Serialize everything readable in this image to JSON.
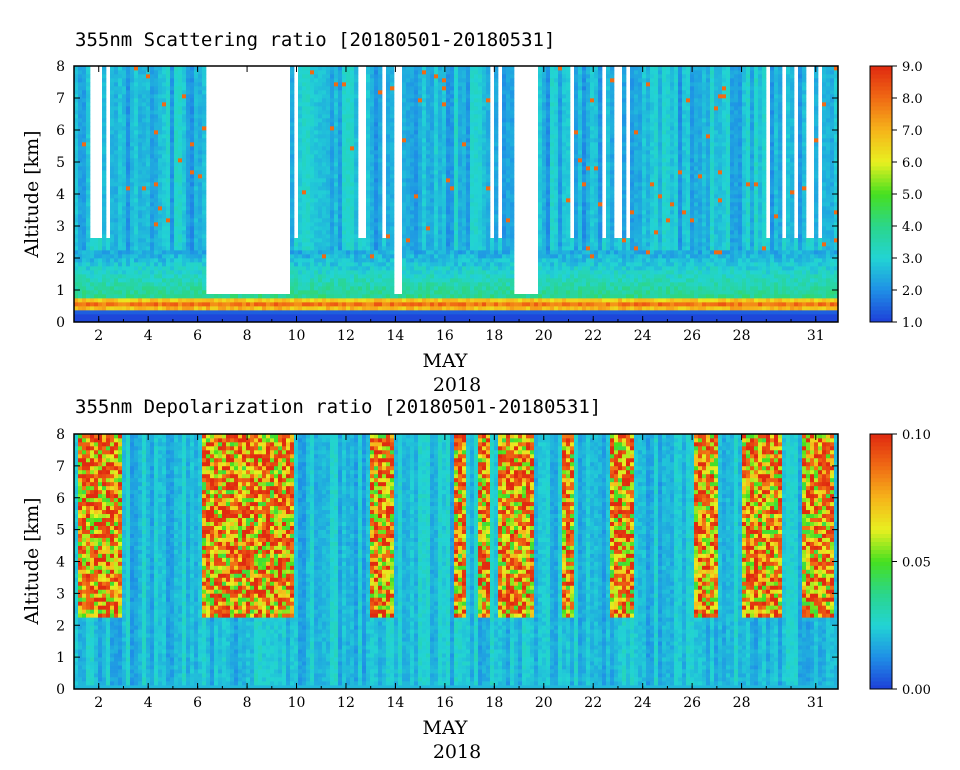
{
  "chart_data": [
    {
      "type": "heatmap",
      "title": "355nm Scattering ratio [20180501-20180531]",
      "ylabel": "Altitude [km]",
      "xlabel": "MAY",
      "xlabel_year": "2018",
      "x_range_day": [
        1,
        31.9
      ],
      "ylim": [
        0,
        8
      ],
      "x_ticks": [
        {
          "day": 2,
          "label": "2"
        },
        {
          "day": 4,
          "label": "4"
        },
        {
          "day": 6,
          "label": "6"
        },
        {
          "day": 8,
          "label": "8"
        },
        {
          "day": 10,
          "label": "10"
        },
        {
          "day": 12,
          "label": "12"
        },
        {
          "day": 14,
          "label": "14"
        },
        {
          "day": 16,
          "label": "16"
        },
        {
          "day": 18,
          "label": "18"
        },
        {
          "day": 20,
          "label": "20"
        },
        {
          "day": 22,
          "label": "22"
        },
        {
          "day": 24,
          "label": "24"
        },
        {
          "day": 26,
          "label": "26"
        },
        {
          "day": 28,
          "label": "28"
        },
        {
          "day": 31,
          "label": "31"
        }
      ],
      "y_ticks": [
        "0",
        "1",
        "2",
        "3",
        "4",
        "5",
        "6",
        "7",
        "8"
      ],
      "colorbar": {
        "min": 1.0,
        "max": 9.0,
        "tick_labels": [
          "1.0",
          "2.0",
          "3.0",
          "4.0",
          "5.0",
          "6.0",
          "7.0",
          "8.0",
          "9.0"
        ],
        "colors": [
          "#1e3fd8",
          "#1f8fe6",
          "#22d4d4",
          "#2bd68a",
          "#46e020",
          "#e8f020",
          "#f6b41a",
          "#f06a14",
          "#e02a10"
        ]
      },
      "scene": {
        "background_value": 1.8,
        "no_data_color": "#ffffff",
        "white_gaps_days": [
          [
            6.3,
            9.7
          ],
          [
            18.8,
            19.7
          ],
          [
            14.0,
            14.3
          ]
        ],
        "boundary_layer_top_km": 0.55,
        "boundary_layer_value": 7.5,
        "notes": "high scattering boundary layer near 0.5 km, clouds above 2 km on several days"
      }
    },
    {
      "type": "heatmap",
      "title": "355nm Depolarization ratio [20180501-20180531]",
      "ylabel": "Altitude [km]",
      "xlabel": "MAY",
      "xlabel_year": "2018",
      "x_range_day": [
        1,
        31.9
      ],
      "ylim": [
        0,
        8
      ],
      "x_ticks": [
        {
          "day": 2,
          "label": "2"
        },
        {
          "day": 4,
          "label": "4"
        },
        {
          "day": 6,
          "label": "6"
        },
        {
          "day": 8,
          "label": "8"
        },
        {
          "day": 10,
          "label": "10"
        },
        {
          "day": 12,
          "label": "12"
        },
        {
          "day": 14,
          "label": "14"
        },
        {
          "day": 16,
          "label": "16"
        },
        {
          "day": 18,
          "label": "18"
        },
        {
          "day": 20,
          "label": "20"
        },
        {
          "day": 22,
          "label": "22"
        },
        {
          "day": 24,
          "label": "24"
        },
        {
          "day": 26,
          "label": "26"
        },
        {
          "day": 28,
          "label": "28"
        },
        {
          "day": 31,
          "label": "31"
        }
      ],
      "y_ticks": [
        "0",
        "1",
        "2",
        "3",
        "4",
        "5",
        "6",
        "7",
        "8"
      ],
      "colorbar": {
        "min": 0.0,
        "max": 0.1,
        "tick_labels": [
          "0.00",
          "0.05",
          "0.10"
        ],
        "colors": [
          "#1e3fd8",
          "#1f8fe6",
          "#22d4d4",
          "#2bd68a",
          "#46e020",
          "#e8f020",
          "#f6b41a",
          "#f06a14",
          "#e02a10"
        ]
      },
      "scene": {
        "background_value": 0.012,
        "high_depol_days": [
          [
            1.2,
            3.0
          ],
          [
            6.2,
            9.9
          ],
          [
            13.0,
            13.9
          ],
          [
            16.3,
            16.9
          ],
          [
            17.3,
            17.9
          ],
          [
            18.2,
            19.6
          ],
          [
            20.8,
            21.3
          ],
          [
            22.6,
            23.6
          ],
          [
            26.0,
            27.1
          ],
          [
            28.0,
            29.6
          ],
          [
            30.5,
            31.8
          ]
        ],
        "high_depol_min_km": 2.2,
        "high_depol_value": 0.085
      }
    }
  ]
}
